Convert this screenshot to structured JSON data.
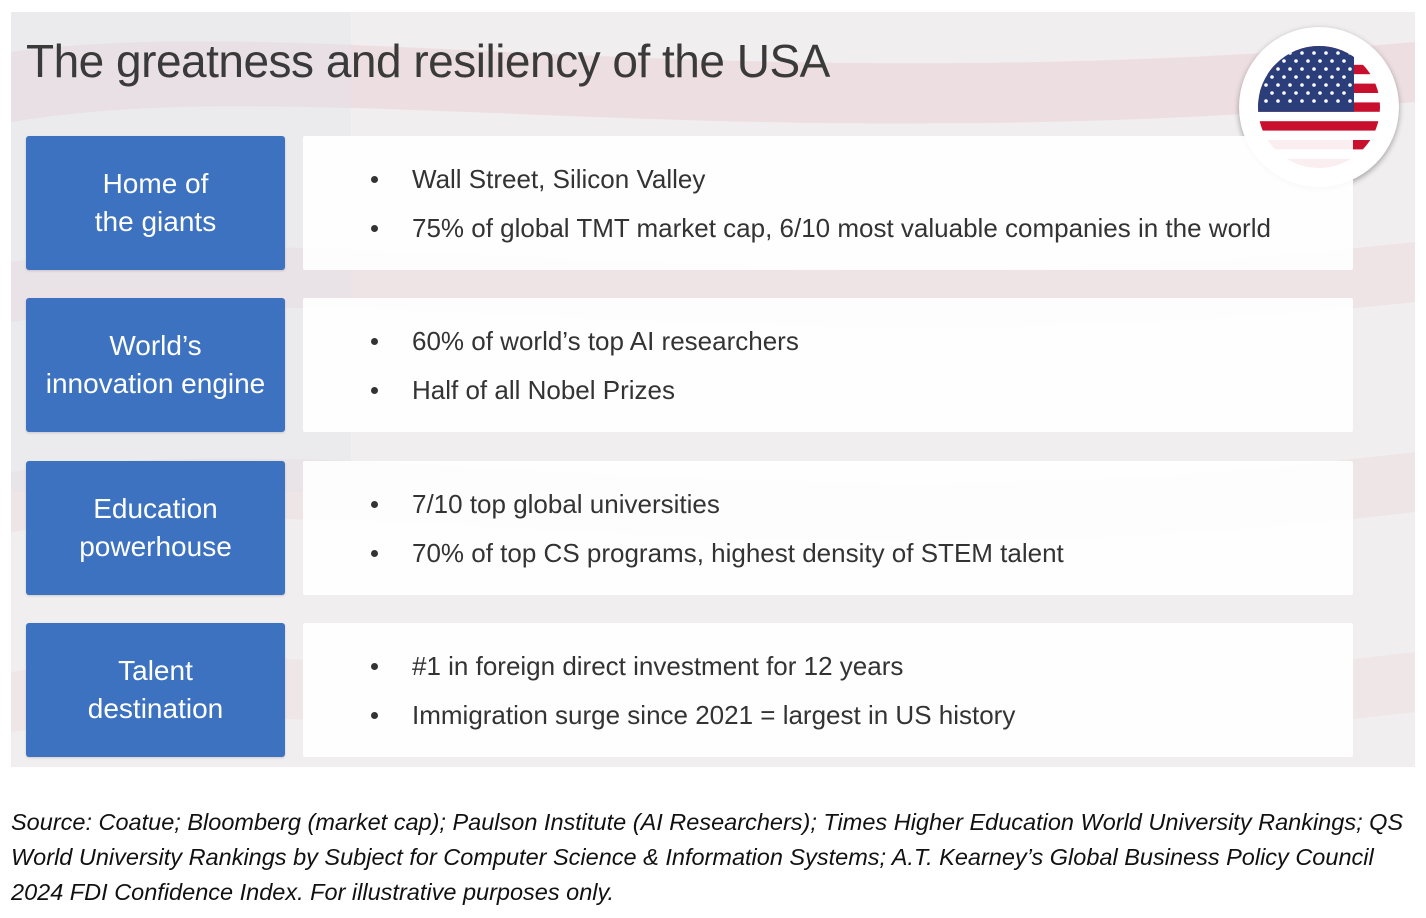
{
  "slide": {
    "title": "The greatness and resiliency of the USA",
    "rows": [
      {
        "label": "Home of\nthe giants",
        "bullets": [
          "Wall Street, Silicon Valley",
          "75% of global TMT market cap, 6/10 most valuable companies in the world"
        ]
      },
      {
        "label": "World’s\ninnovation engine",
        "bullets": [
          "60% of world’s top AI researchers",
          "Half of all Nobel Prizes"
        ]
      },
      {
        "label": "Education\npowerhouse",
        "bullets": [
          "7/10 top global universities",
          "70% of top CS programs, highest density of STEM talent"
        ]
      },
      {
        "label": "Talent\ndestination",
        "bullets": [
          "#1 in foreign direct investment for 12 years",
          "Immigration surge since 2021 = largest in US history"
        ]
      }
    ],
    "flag_icon": "us-flag-icon",
    "colors": {
      "label_blue": "#3d72c0",
      "flag_red": "#c8102e",
      "flag_blue": "#2c3e7a"
    }
  },
  "source_note": "Source: Coatue; Bloomberg (market cap); Paulson Institute (AI Researchers); Times Higher Education World University Rankings; QS World University Rankings by Subject for Computer Science & Information Systems; A.T. Kearney’s Global Business Policy Council 2024 FDI Confidence Index. For illustrative purposes only."
}
